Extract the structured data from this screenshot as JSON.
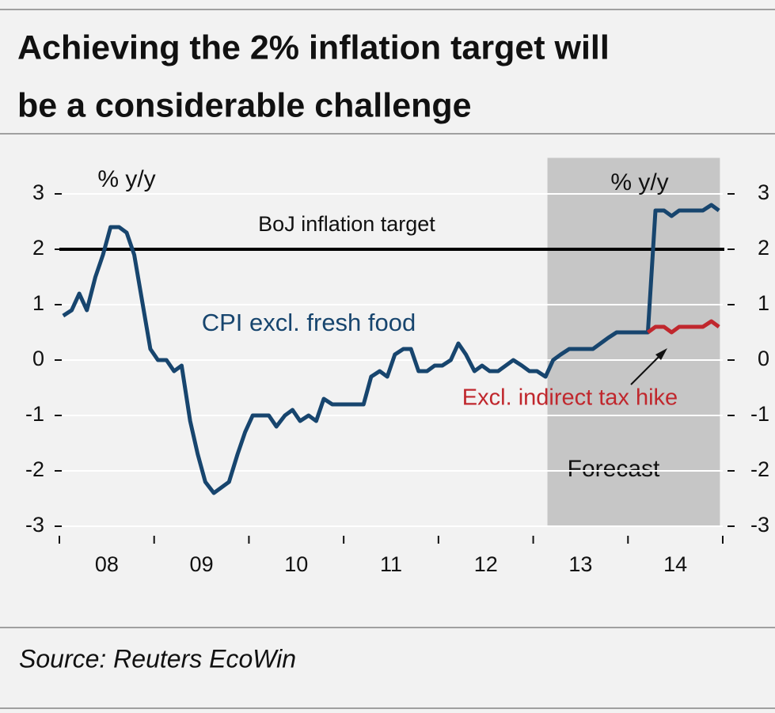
{
  "chart_data": {
    "type": "line",
    "title": [
      "Achieving the 2% inflation target will",
      "be a considerable challenge"
    ],
    "y_axis_label": "% y/y",
    "y2_axis_label": "% y/y",
    "source": "Source: Reuters EcoWin",
    "x": [
      2008.04,
      2008.13,
      2008.21,
      2008.29,
      2008.38,
      2008.46,
      2008.54,
      2008.63,
      2008.71,
      2008.79,
      2008.88,
      2008.96,
      2009.04,
      2009.13,
      2009.21,
      2009.29,
      2009.38,
      2009.46,
      2009.54,
      2009.63,
      2009.71,
      2009.79,
      2009.88,
      2009.96,
      2010.04,
      2010.13,
      2010.21,
      2010.29,
      2010.38,
      2010.46,
      2010.54,
      2010.63,
      2010.71,
      2010.79,
      2010.88,
      2010.96,
      2011.04,
      2011.13,
      2011.21,
      2011.29,
      2011.38,
      2011.46,
      2011.54,
      2011.63,
      2011.71,
      2011.79,
      2011.88,
      2011.96,
      2012.04,
      2012.13,
      2012.21,
      2012.29,
      2012.38,
      2012.46,
      2012.54,
      2012.63,
      2012.71,
      2012.79,
      2012.88,
      2012.96,
      2013.04,
      2013.13,
      2013.21,
      2013.29,
      2013.38,
      2013.46,
      2013.54,
      2013.63,
      2013.71,
      2013.79,
      2013.88,
      2013.96,
      2014.04,
      2014.13,
      2014.21,
      2014.29,
      2014.38,
      2014.46,
      2014.54,
      2014.63,
      2014.71,
      2014.79,
      2014.88,
      2014.96
    ],
    "series": [
      {
        "name": "CPI excl. fresh food",
        "color": "#17456e",
        "values": [
          0.8,
          0.9,
          1.2,
          0.9,
          1.5,
          1.9,
          2.4,
          2.4,
          2.3,
          1.9,
          1.0,
          0.2,
          0.0,
          0.0,
          -0.2,
          -0.1,
          -1.1,
          -1.7,
          -2.2,
          -2.4,
          -2.3,
          -2.2,
          -1.7,
          -1.3,
          -1.0,
          -1.0,
          -1.0,
          -1.2,
          -1.0,
          -0.9,
          -1.1,
          -1.0,
          -1.1,
          -0.7,
          -0.8,
          -0.8,
          -0.8,
          -0.8,
          -0.8,
          -0.3,
          -0.2,
          -0.3,
          0.1,
          0.2,
          0.2,
          -0.2,
          -0.2,
          -0.1,
          -0.1,
          0.0,
          0.3,
          0.1,
          -0.2,
          -0.1,
          -0.2,
          -0.2,
          -0.1,
          0.0,
          -0.1,
          -0.2,
          -0.2,
          -0.3,
          0.0,
          0.1,
          0.2,
          0.2,
          0.2,
          0.2,
          0.3,
          0.4,
          0.5,
          0.5,
          0.5,
          0.5,
          0.5,
          2.7,
          2.7,
          2.6,
          2.7,
          2.7,
          2.7,
          2.7,
          2.8,
          2.7
        ]
      },
      {
        "name": "Excl. indirect tax hike",
        "color": "#c0272d",
        "values": [
          null,
          null,
          null,
          null,
          null,
          null,
          null,
          null,
          null,
          null,
          null,
          null,
          null,
          null,
          null,
          null,
          null,
          null,
          null,
          null,
          null,
          null,
          null,
          null,
          null,
          null,
          null,
          null,
          null,
          null,
          null,
          null,
          null,
          null,
          null,
          null,
          null,
          null,
          null,
          null,
          null,
          null,
          null,
          null,
          null,
          null,
          null,
          null,
          null,
          null,
          null,
          null,
          null,
          null,
          null,
          null,
          null,
          null,
          null,
          null,
          null,
          null,
          null,
          null,
          null,
          null,
          null,
          null,
          null,
          null,
          null,
          null,
          null,
          null,
          0.5,
          0.6,
          0.6,
          0.5,
          0.6,
          0.6,
          0.6,
          0.6,
          0.7,
          0.6
        ]
      }
    ],
    "xlim": [
      2008,
      2015
    ],
    "xticks": [
      {
        "value": 2008,
        "label": "08"
      },
      {
        "value": 2009,
        "label": "09"
      },
      {
        "value": 2010,
        "label": "10"
      },
      {
        "value": 2011,
        "label": "11"
      },
      {
        "value": 2012,
        "label": "12"
      },
      {
        "value": 2013,
        "label": "13"
      },
      {
        "value": 2014,
        "label": "14"
      }
    ],
    "ylim": [
      -3,
      3.65
    ],
    "yticks": [
      -3,
      -2,
      -1,
      0,
      1,
      2,
      3
    ],
    "y2lim": [
      -3,
      3.65
    ],
    "y2ticks": [
      -3,
      -2,
      -1,
      0,
      1,
      2,
      3
    ],
    "grid": true,
    "target": {
      "value": 2,
      "label": "BoJ inflation target",
      "color": "#000000"
    },
    "forecast": {
      "span": [
        2013.15,
        2014.97
      ],
      "label": "Forecast",
      "color": "#c6c6c6"
    }
  }
}
